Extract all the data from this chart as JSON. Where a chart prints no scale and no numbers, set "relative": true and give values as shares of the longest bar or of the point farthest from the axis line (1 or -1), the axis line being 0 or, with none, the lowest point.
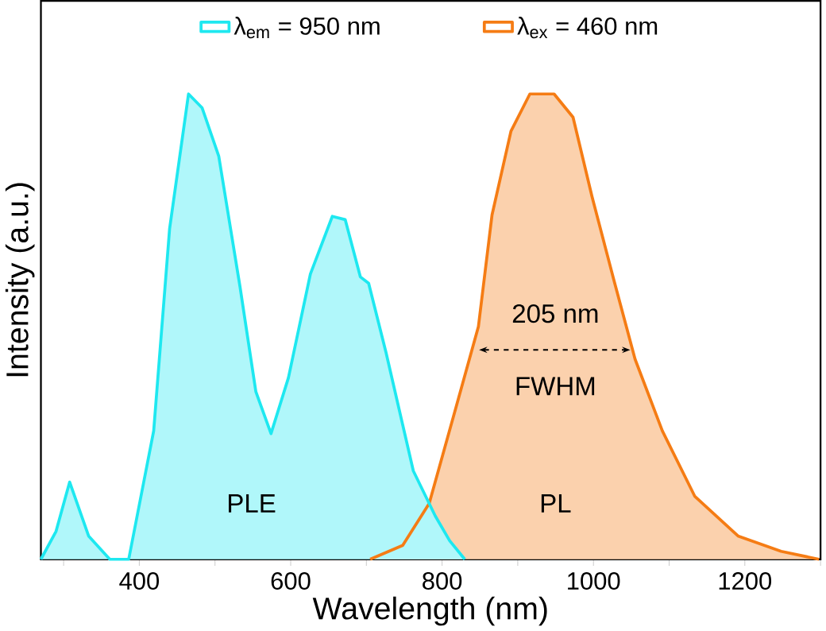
{
  "chart_data": {
    "type": "area",
    "xlabel": "Wavelength (nm)",
    "ylabel": "Intensity (a.u.)",
    "relative": true,
    "xlim": [
      270,
      1300
    ],
    "xticks": [
      {
        "value": 300,
        "label": null
      },
      400,
      {
        "value": 500,
        "label": null
      },
      600,
      {
        "value": 700,
        "label": null
      },
      800,
      {
        "value": 900,
        "label": null
      },
      1000,
      {
        "value": 1100,
        "label": null
      },
      1200,
      {
        "value": 1300,
        "label": null
      }
    ],
    "series": [
      {
        "name": "λ$_{em}$ = 950 nm",
        "color": "#1ee8f0",
        "x": [
          270,
          290,
          308,
          333,
          361,
          386,
          419,
          440,
          465,
          483,
          505,
          533,
          554,
          574,
          597,
          626,
          655,
          672,
          692,
          703,
          726,
          762,
          791,
          810,
          830
        ],
        "values": [
          0.0,
          0.06,
          0.166,
          0.05,
          0.0,
          0.0,
          0.276,
          0.71,
          1.0,
          0.97,
          0.866,
          0.586,
          0.36,
          0.27,
          0.39,
          0.613,
          0.737,
          0.73,
          0.607,
          0.593,
          0.444,
          0.19,
          0.093,
          0.04,
          0.0
        ]
      },
      {
        "name": "λ$_{ex}$ = 460 nm",
        "color": "#f57c14",
        "x": [
          705,
          748,
          783,
          819,
          848,
          866,
          891,
          916,
          948,
          973,
          998,
          1027,
          1055,
          1091,
          1134,
          1191,
          1248,
          1298
        ],
        "values": [
          0.0,
          0.03,
          0.12,
          0.33,
          0.5,
          0.74,
          0.92,
          1.0,
          1.0,
          0.95,
          0.78,
          0.6,
          0.43,
          0.276,
          0.135,
          0.05,
          0.017,
          0.0
        ]
      }
    ],
    "annotations": [
      "PLE",
      "PL",
      "205 nm",
      "FWHM"
    ],
    "legend": "top"
  }
}
